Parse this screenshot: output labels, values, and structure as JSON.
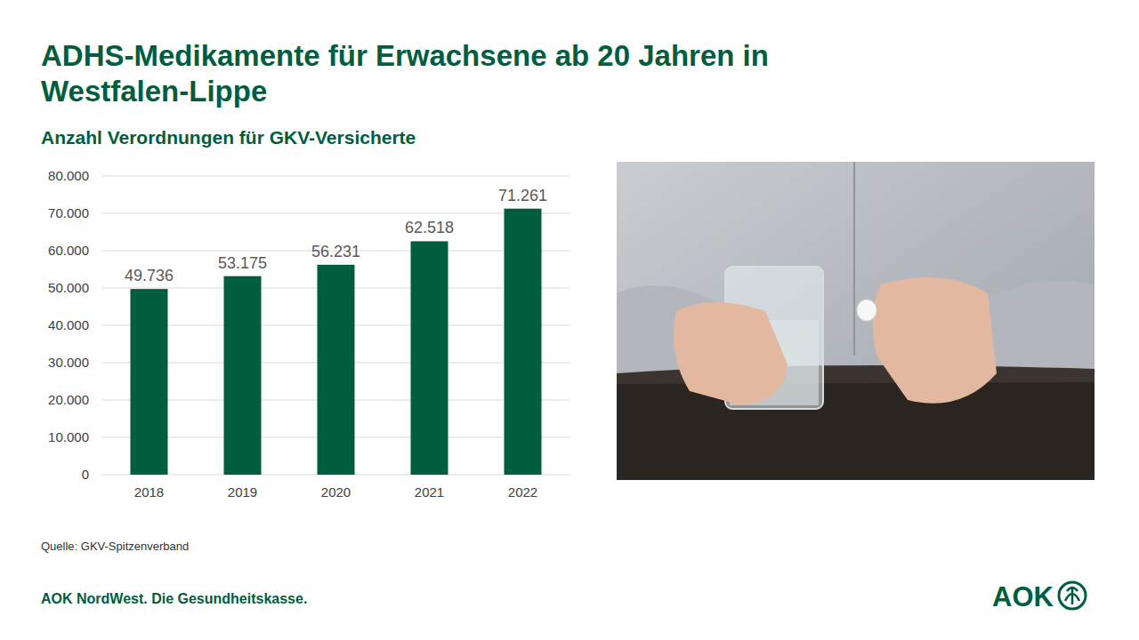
{
  "chart_data": {
    "type": "bar",
    "title": "ADHS-Medikamente für Erwachsene ab 20 Jahren in Westfalen-Lippe",
    "subtitle": "Anzahl Verordnungen für GKV-Versicherte",
    "categories": [
      "2018",
      "2019",
      "2020",
      "2021",
      "2022"
    ],
    "values": [
      49736,
      53175,
      56231,
      62518,
      71261
    ],
    "value_labels": [
      "49.736",
      "53.175",
      "56.231",
      "62.518",
      "71.261"
    ],
    "color": "#005e3f",
    "ylim": [
      0,
      80000
    ],
    "yticks": [
      0,
      {
        "value": 10000,
        "label": "10.000"
      },
      {
        "value": 20000,
        "label": "20.000"
      },
      {
        "value": 30000,
        "label": "30.000"
      },
      {
        "value": 40000,
        "label": "40.000"
      },
      {
        "value": 50000,
        "label": "50.000"
      },
      {
        "value": 60000,
        "label": "60.000"
      },
      {
        "value": 70000,
        "label": "70.000"
      },
      {
        "value": 80000,
        "label": "80.000"
      }
    ],
    "grid": true,
    "data_labels": true
  },
  "source": "Quelle: GKV-Spitzenverband",
  "footer": "AOK NordWest. Die Gesundheitskasse.",
  "logo": "AOK"
}
